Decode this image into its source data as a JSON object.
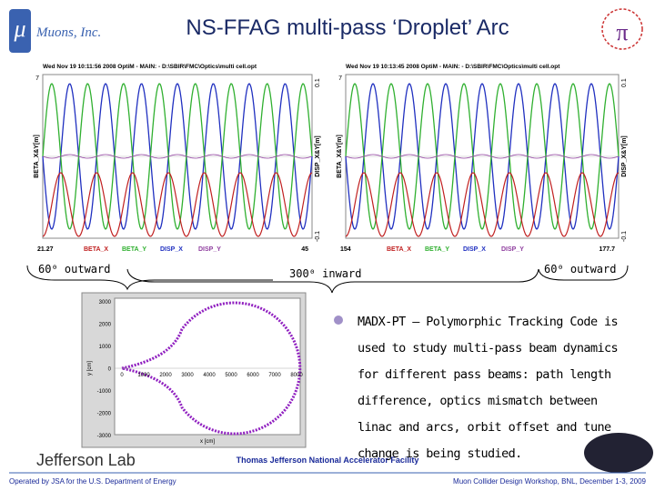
{
  "header": {
    "logo_symbol": "μ",
    "logo_text": "Muons, Inc.",
    "title": "NS-FFAG multi-pass  ‘Droplet’ Arc"
  },
  "plots": [
    {
      "header": "Wed Nov 19 10:11:56 2008   OptiM - MAIN: - D:\\SBIR\\FMC\\Optics\\multi cell.opt",
      "y_left_top": "7",
      "y_left_label": "BETA_X&Y[m]",
      "y_right_top": "0.1",
      "y_right_bottom": "-0.1",
      "y_right_label": "DISP_X&Y[m]",
      "x_start": "21.27",
      "x_end": "45",
      "legend": [
        "BETA_X",
        "BETA_Y",
        "DISP_X",
        "DISP_Y"
      ]
    },
    {
      "header": "Wed Nov 19 10:13:45 2008   OptiM - MAIN: - D:\\SBIR\\FMC\\Optics\\multi cell.opt",
      "y_left_top": "7",
      "y_left_label": "BETA_X&Y[m]",
      "y_right_top": "0.1",
      "y_right_bottom": "-0.1",
      "y_right_label": "DISP_X&Y[m]",
      "x_start": "154",
      "x_end": "177.7",
      "legend": [
        "BETA_X",
        "BETA_Y",
        "DISP_X",
        "DISP_Y"
      ]
    }
  ],
  "annotations": [
    "60⁰ outward",
    "300⁰ inward",
    "60⁰ outward"
  ],
  "orbit_plot": {
    "y_ticks": [
      "3000",
      "2000",
      "1000",
      "0",
      "-1000",
      "-2000",
      "-3000"
    ],
    "x_ticks": [
      "0",
      "1000",
      "2000",
      "3000",
      "4000",
      "5000",
      "6000",
      "7000",
      "8000"
    ],
    "x_label": "x [cm]",
    "y_label": "y [cm]"
  },
  "bullet": "MADX-PT – Polymorphic Tracking Code is used to study multi-pass beam dynamics for different pass beams: path length difference, optics mismatch between linac and arcs, orbit offset and tune change is being studied.",
  "footer": {
    "lab": "Jefferson Lab",
    "facility": "Thomas Jefferson National Accelerator Facility",
    "operated": "Operated by JSA for the U.S. Department of Energy",
    "event": "Muon Collider Design Workshop,  BNL,  December 1-3, 2009"
  }
}
